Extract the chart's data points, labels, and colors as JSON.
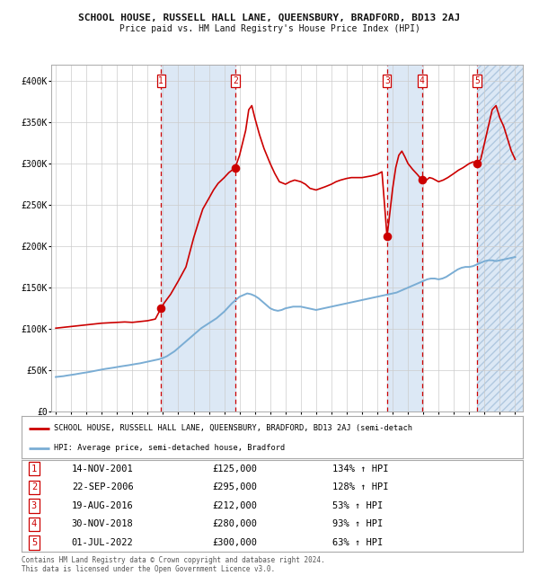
{
  "title": "SCHOOL HOUSE, RUSSELL HALL LANE, QUEENSBURY, BRADFORD, BD13 2AJ",
  "subtitle": "Price paid vs. HM Land Registry's House Price Index (HPI)",
  "legend_red": "SCHOOL HOUSE, RUSSELL HALL LANE, QUEENSBURY, BRADFORD, BD13 2AJ (semi-detach",
  "legend_blue": "HPI: Average price, semi-detached house, Bradford",
  "footer1": "Contains HM Land Registry data © Crown copyright and database right 2024.",
  "footer2": "This data is licensed under the Open Government Licence v3.0.",
  "sales": [
    {
      "num": 1,
      "date": "14-NOV-2001",
      "price": 125000,
      "pct": "134%",
      "x_year": 2001.87
    },
    {
      "num": 2,
      "date": "22-SEP-2006",
      "price": 295000,
      "pct": "128%",
      "x_year": 2006.72
    },
    {
      "num": 3,
      "date": "19-AUG-2016",
      "price": 212000,
      "pct": "53%",
      "x_year": 2016.63
    },
    {
      "num": 4,
      "date": "30-NOV-2018",
      "price": 280000,
      "pct": "93%",
      "x_year": 2018.92
    },
    {
      "num": 5,
      "date": "01-JUL-2022",
      "price": 300000,
      "pct": "63%",
      "x_year": 2022.5
    }
  ],
  "ylim": [
    0,
    420000
  ],
  "xlim_start": 1994.7,
  "xlim_end": 2025.5,
  "yticks": [
    0,
    50000,
    100000,
    150000,
    200000,
    250000,
    300000,
    350000,
    400000
  ],
  "ytick_labels": [
    "£0",
    "£50K",
    "£100K",
    "£150K",
    "£200K",
    "£250K",
    "£300K",
    "£350K",
    "£400K"
  ],
  "plot_bg": "#ffffff",
  "red_color": "#cc0000",
  "blue_color": "#7aadd4",
  "shade_color": "#dce8f5",
  "hpi_years": [
    1995.0,
    1995.25,
    1995.5,
    1995.75,
    1996.0,
    1996.25,
    1996.5,
    1996.75,
    1997.0,
    1997.25,
    1997.5,
    1997.75,
    1998.0,
    1998.25,
    1998.5,
    1998.75,
    1999.0,
    1999.25,
    1999.5,
    1999.75,
    2000.0,
    2000.25,
    2000.5,
    2000.75,
    2001.0,
    2001.25,
    2001.5,
    2001.75,
    2002.0,
    2002.25,
    2002.5,
    2002.75,
    2003.0,
    2003.25,
    2003.5,
    2003.75,
    2004.0,
    2004.25,
    2004.5,
    2004.75,
    2005.0,
    2005.25,
    2005.5,
    2005.75,
    2006.0,
    2006.25,
    2006.5,
    2006.75,
    2007.0,
    2007.25,
    2007.5,
    2007.75,
    2008.0,
    2008.25,
    2008.5,
    2008.75,
    2009.0,
    2009.25,
    2009.5,
    2009.75,
    2010.0,
    2010.25,
    2010.5,
    2010.75,
    2011.0,
    2011.25,
    2011.5,
    2011.75,
    2012.0,
    2012.25,
    2012.5,
    2012.75,
    2013.0,
    2013.25,
    2013.5,
    2013.75,
    2014.0,
    2014.25,
    2014.5,
    2014.75,
    2015.0,
    2015.25,
    2015.5,
    2015.75,
    2016.0,
    2016.25,
    2016.5,
    2016.75,
    2017.0,
    2017.25,
    2017.5,
    2017.75,
    2018.0,
    2018.25,
    2018.5,
    2018.75,
    2019.0,
    2019.25,
    2019.5,
    2019.75,
    2020.0,
    2020.25,
    2020.5,
    2020.75,
    2021.0,
    2021.25,
    2021.5,
    2021.75,
    2022.0,
    2022.25,
    2022.5,
    2022.75,
    2023.0,
    2023.25,
    2023.5,
    2023.75,
    2024.0,
    2024.25,
    2024.5,
    2024.75,
    2025.0
  ],
  "hpi_values": [
    42000,
    42500,
    43000,
    43800,
    44500,
    45200,
    46000,
    46800,
    47500,
    48300,
    49200,
    50100,
    51000,
    51800,
    52500,
    53200,
    54000,
    54800,
    55500,
    56200,
    57000,
    57800,
    58500,
    59500,
    60500,
    61500,
    62500,
    63500,
    65000,
    67000,
    70000,
    73000,
    77000,
    81000,
    85000,
    89000,
    93000,
    97000,
    101000,
    104000,
    107000,
    110000,
    113000,
    117000,
    121000,
    126000,
    131000,
    135000,
    139000,
    141000,
    143000,
    142000,
    140000,
    137000,
    133000,
    129000,
    125000,
    123000,
    122000,
    123000,
    125000,
    126000,
    127000,
    127000,
    127000,
    126000,
    125000,
    124000,
    123000,
    124000,
    125000,
    126000,
    127000,
    128000,
    129000,
    130000,
    131000,
    132000,
    133000,
    134000,
    135000,
    136000,
    137000,
    138000,
    139000,
    140000,
    141000,
    142000,
    143000,
    144000,
    146000,
    148000,
    150000,
    152000,
    154000,
    156000,
    158000,
    160000,
    161000,
    161000,
    160000,
    161000,
    163000,
    166000,
    169000,
    172000,
    174000,
    175000,
    175000,
    176000,
    178000,
    180000,
    182000,
    183000,
    183000,
    182000,
    183000,
    184000,
    185000,
    186000,
    187000
  ],
  "prop_years": [
    1995.0,
    1995.5,
    1996.0,
    1996.5,
    1997.0,
    1997.5,
    1998.0,
    1998.5,
    1999.0,
    1999.5,
    2000.0,
    2000.5,
    2001.0,
    2001.5,
    2001.87,
    2002.1,
    2002.5,
    2003.0,
    2003.5,
    2004.0,
    2004.3,
    2004.6,
    2005.0,
    2005.3,
    2005.6,
    2006.0,
    2006.3,
    2006.72,
    2007.0,
    2007.2,
    2007.4,
    2007.6,
    2007.8,
    2008.0,
    2008.3,
    2008.6,
    2009.0,
    2009.3,
    2009.6,
    2010.0,
    2010.3,
    2010.6,
    2011.0,
    2011.3,
    2011.6,
    2012.0,
    2012.3,
    2012.6,
    2013.0,
    2013.3,
    2013.6,
    2014.0,
    2014.3,
    2014.6,
    2015.0,
    2015.3,
    2015.6,
    2016.0,
    2016.3,
    2016.63,
    2016.75,
    2017.0,
    2017.2,
    2017.4,
    2017.6,
    2017.8,
    2018.0,
    2018.3,
    2018.6,
    2018.92,
    2019.0,
    2019.2,
    2019.4,
    2019.6,
    2019.8,
    2020.0,
    2020.3,
    2020.6,
    2021.0,
    2021.3,
    2021.6,
    2022.0,
    2022.25,
    2022.5,
    2022.75,
    2023.0,
    2023.25,
    2023.5,
    2023.75,
    2024.0,
    2024.25,
    2024.5,
    2024.75,
    2025.0
  ],
  "prop_values": [
    101000,
    102000,
    103000,
    104000,
    105000,
    106000,
    107000,
    107500,
    108000,
    108500,
    108000,
    109000,
    110000,
    112000,
    125000,
    132000,
    142000,
    158000,
    175000,
    210000,
    228000,
    245000,
    258000,
    268000,
    276000,
    283000,
    289000,
    295000,
    310000,
    325000,
    340000,
    365000,
    370000,
    355000,
    335000,
    318000,
    300000,
    288000,
    278000,
    275000,
    278000,
    280000,
    278000,
    275000,
    270000,
    268000,
    270000,
    272000,
    275000,
    278000,
    280000,
    282000,
    283000,
    283000,
    283000,
    284000,
    285000,
    287000,
    290000,
    212000,
    230000,
    270000,
    295000,
    310000,
    315000,
    308000,
    300000,
    293000,
    287000,
    280000,
    278000,
    280000,
    283000,
    282000,
    280000,
    278000,
    280000,
    283000,
    288000,
    292000,
    295000,
    300000,
    302000,
    300000,
    305000,
    325000,
    345000,
    365000,
    370000,
    355000,
    345000,
    330000,
    315000,
    305000
  ]
}
